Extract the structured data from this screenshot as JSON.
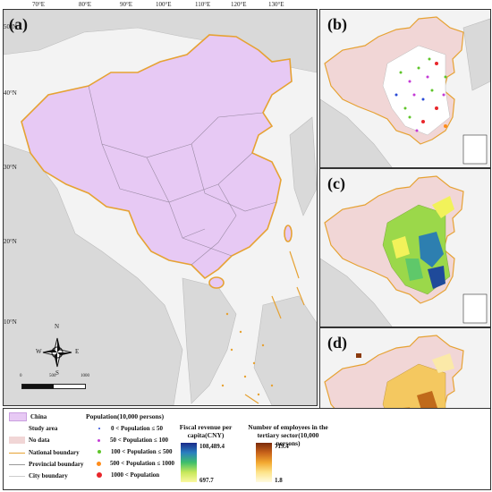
{
  "panels": {
    "a": "(a)",
    "b": "(b)",
    "c": "(c)",
    "d": "(d)"
  },
  "longitudes": [
    "70°E",
    "80°E",
    "90°E",
    "100°E",
    "110°E",
    "120°E",
    "130°E"
  ],
  "latitudes": [
    "50°N",
    "40°N",
    "30°N",
    "20°N",
    "10°N"
  ],
  "compass": {
    "n": "N",
    "s": "S",
    "e": "E",
    "w": "W"
  },
  "scale_labels": [
    "0",
    "500",
    "1000"
  ],
  "legend": {
    "china": "China",
    "study_area": "Study area",
    "no_data": "No data",
    "national": "National boundary",
    "provincial": "Provincial boundary",
    "city": "City boundary",
    "pop_title": "Population(10,000 persons)",
    "pop_items": [
      "0 < Population ≤ 50",
      "50 < Population ≤ 100",
      "100 < Population ≤ 500",
      "500 < Population ≤ 1000",
      "1000 < Population"
    ],
    "pop_colors": [
      "#2a4bd7",
      "#c43ad6",
      "#5fc52a",
      "#ff8c1a",
      "#e8262b"
    ],
    "fiscal_title": "Fiscal revenue per capita(CNY)",
    "fiscal_max": "108,489.4",
    "fiscal_min": "697.7",
    "emp_title": "Number of employees in the tertiary sector(10,000 persons)",
    "emp_max": "719.4",
    "emp_min": "1.8"
  },
  "colors": {
    "china": "#e7c9f4",
    "border": "#e6a233",
    "no_data": "#f1d6d6"
  }
}
